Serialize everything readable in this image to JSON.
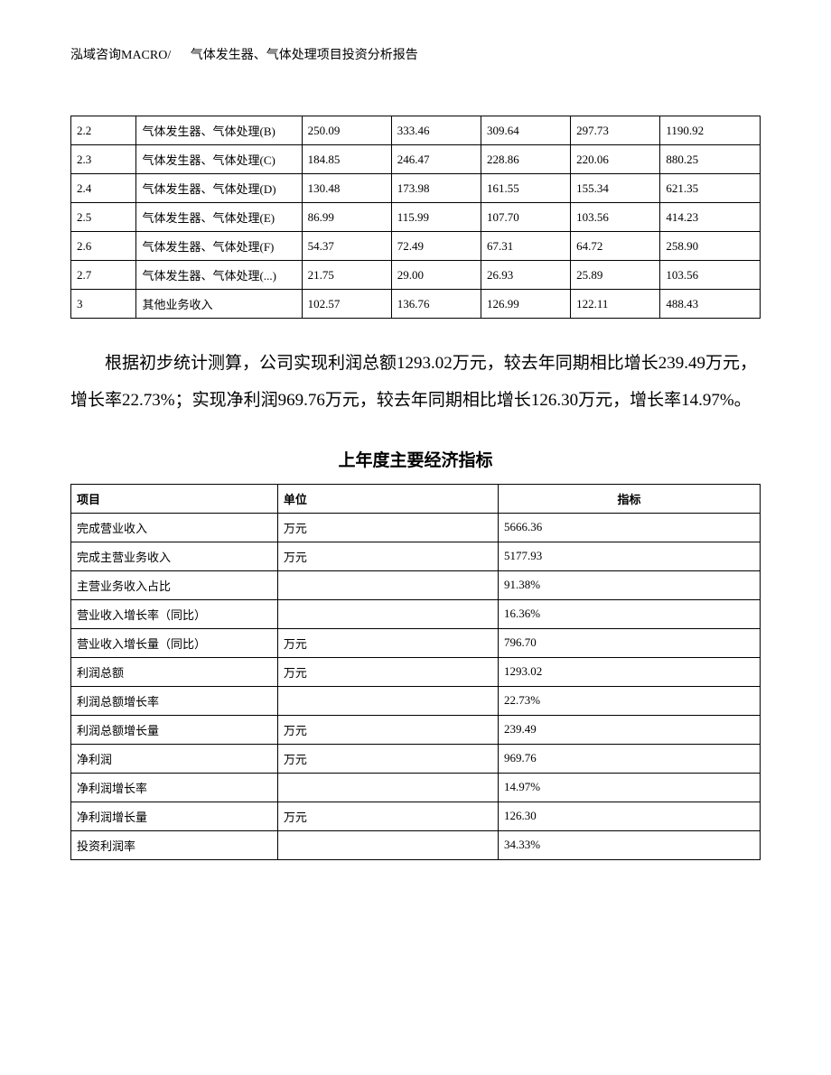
{
  "header": {
    "company": "泓域咨询MACRO/",
    "title": "气体发生器、气体处理项目投资分析报告"
  },
  "table1": {
    "rows": [
      [
        "2.2",
        "气体发生器、气体处理(B)",
        "250.09",
        "333.46",
        "309.64",
        "297.73",
        "1190.92"
      ],
      [
        "2.3",
        "气体发生器、气体处理(C)",
        "184.85",
        "246.47",
        "228.86",
        "220.06",
        "880.25"
      ],
      [
        "2.4",
        "气体发生器、气体处理(D)",
        "130.48",
        "173.98",
        "161.55",
        "155.34",
        "621.35"
      ],
      [
        "2.5",
        "气体发生器、气体处理(E)",
        "86.99",
        "115.99",
        "107.70",
        "103.56",
        "414.23"
      ],
      [
        "2.6",
        "气体发生器、气体处理(F)",
        "54.37",
        "72.49",
        "67.31",
        "64.72",
        "258.90"
      ],
      [
        "2.7",
        "气体发生器、气体处理(...)",
        "21.75",
        "29.00",
        "26.93",
        "25.89",
        "103.56"
      ],
      [
        "3",
        "其他业务收入",
        "102.57",
        "136.76",
        "126.99",
        "122.11",
        "488.43"
      ]
    ]
  },
  "paragraph": "根据初步统计测算，公司实现利润总额1293.02万元，较去年同期相比增长239.49万元，增长率22.73%；实现净利润969.76万元，较去年同期相比增长126.30万元，增长率14.97%。",
  "section_title": "上年度主要经济指标",
  "table2": {
    "headers": [
      "项目",
      "单位",
      "指标"
    ],
    "rows": [
      [
        "完成营业收入",
        "万元",
        "5666.36"
      ],
      [
        "完成主营业务收入",
        "万元",
        "5177.93"
      ],
      [
        "主营业务收入占比",
        "",
        "91.38%"
      ],
      [
        "营业收入增长率（同比）",
        "",
        "16.36%"
      ],
      [
        "营业收入增长量（同比）",
        "万元",
        "796.70"
      ],
      [
        "利润总额",
        "万元",
        "1293.02"
      ],
      [
        "利润总额增长率",
        "",
        "22.73%"
      ],
      [
        "利润总额增长量",
        "万元",
        "239.49"
      ],
      [
        "净利润",
        "万元",
        "969.76"
      ],
      [
        "净利润增长率",
        "",
        "14.97%"
      ],
      [
        "净利润增长量",
        "万元",
        "126.30"
      ],
      [
        "投资利润率",
        "",
        "34.33%"
      ]
    ]
  }
}
